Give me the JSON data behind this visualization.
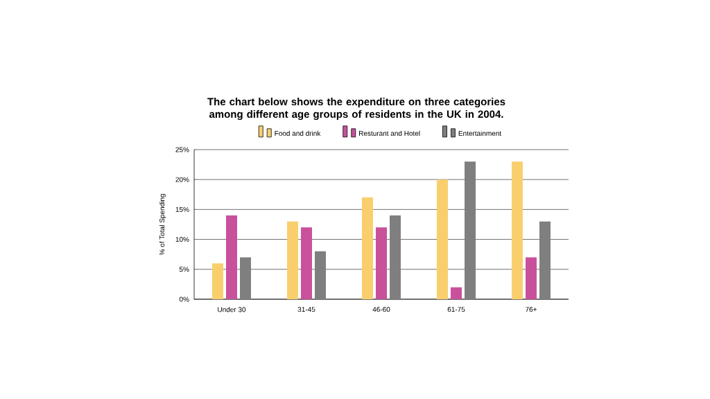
{
  "chart_data": {
    "type": "bar",
    "title": "The chart below shows the expenditure on three categories among different age groups of residents in the UK in 2004.",
    "ylabel": "% of Total Spending",
    "categories": [
      "Under 30",
      "31-45",
      "46-60",
      "61-75",
      "76+"
    ],
    "series": [
      {
        "name": "Food and drink",
        "color": "#f9cf6e",
        "values": [
          6,
          13,
          17,
          20,
          23
        ]
      },
      {
        "name": "Resturant and Hotel",
        "color": "#c9519c",
        "values": [
          14,
          12,
          12,
          2,
          7
        ]
      },
      {
        "name": "Entertainment",
        "color": "#7f7f7f",
        "values": [
          7,
          8,
          14,
          23,
          13
        ]
      }
    ],
    "ylim": [
      0,
      25
    ],
    "yticks": [
      {
        "value": 0,
        "label": "0%"
      },
      {
        "value": 5,
        "label": "5%"
      },
      {
        "value": 10,
        "label": "10%"
      },
      {
        "value": 15,
        "label": "15%"
      },
      {
        "value": 20,
        "label": "20%"
      },
      {
        "value": 25,
        "label": "25%"
      }
    ],
    "grid": "y",
    "legend": "top"
  }
}
